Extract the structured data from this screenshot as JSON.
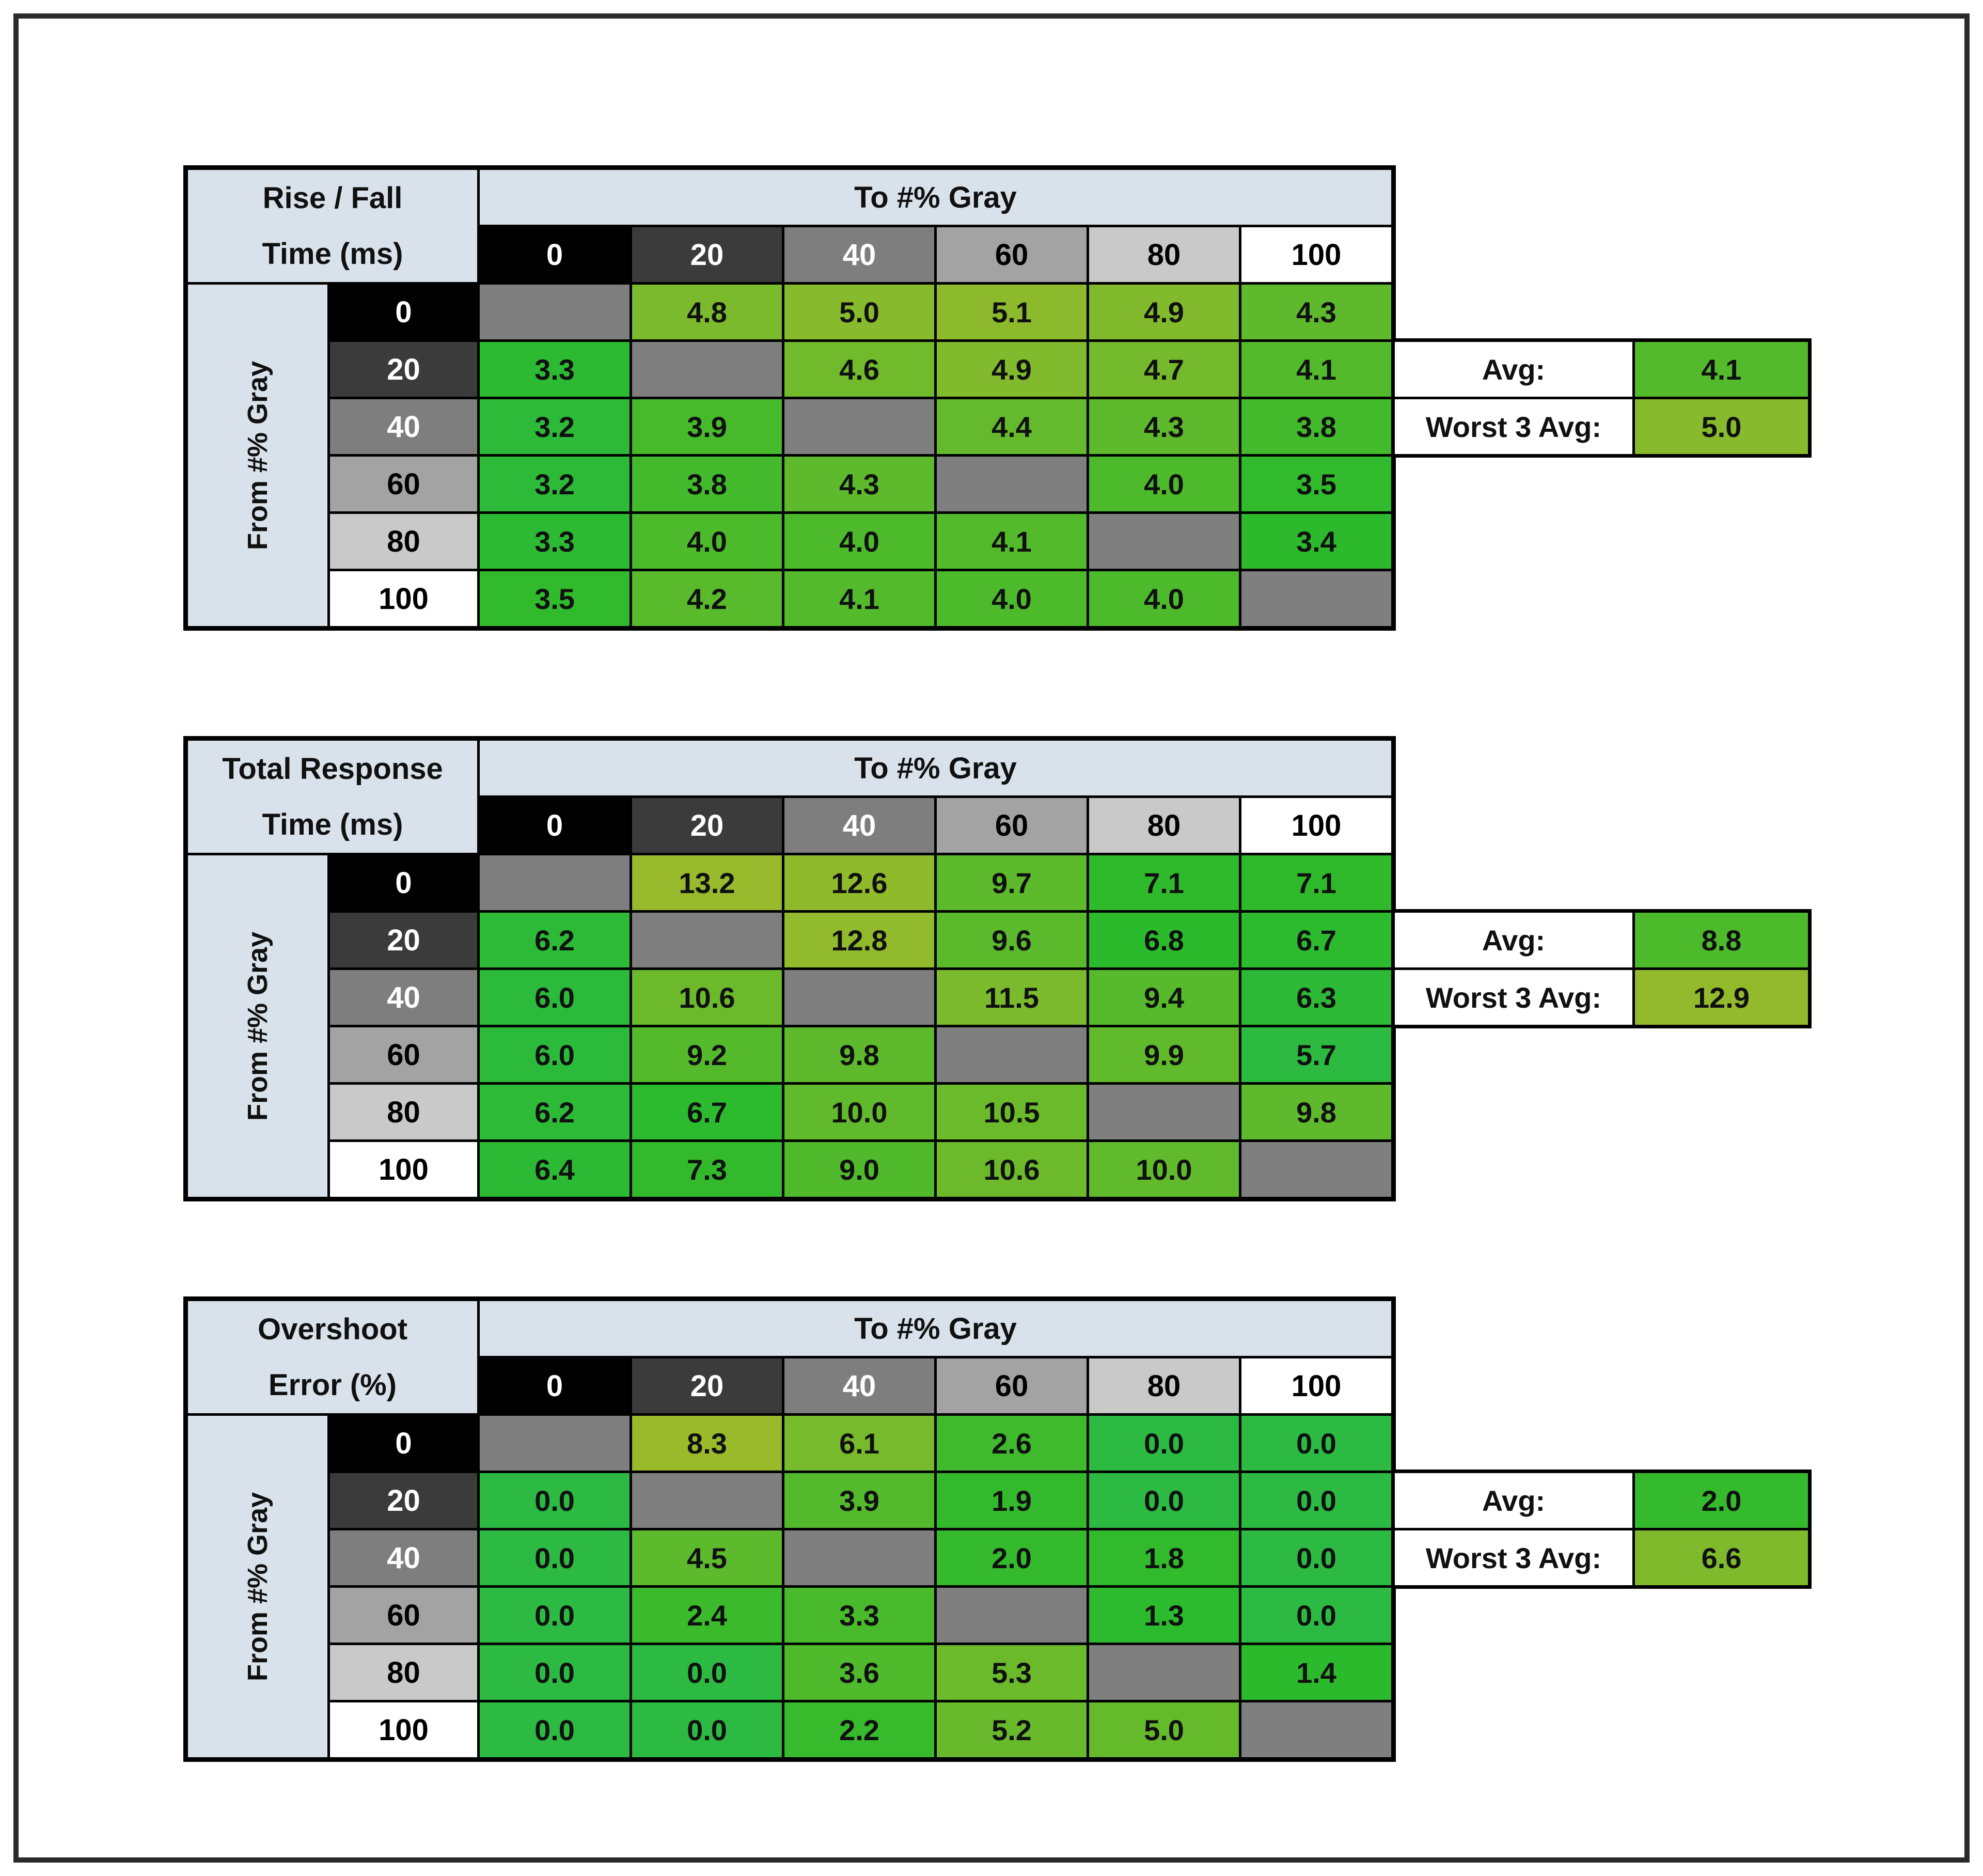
{
  "page": {
    "background": "#ffffff",
    "frame_border_color": "#2a2a2a"
  },
  "shared": {
    "to_header": "To #% Gray",
    "from_header": "From #% Gray",
    "levels": [
      "0",
      "20",
      "40",
      "60",
      "80",
      "100"
    ],
    "avg_label": "Avg:",
    "worst3_label": "Worst 3 Avg:",
    "header_bg": "#d9e2eb",
    "diagonal_bg": "#7f7f7f",
    "grid_color": "#000000",
    "level_styles": [
      {
        "bg": "#000000",
        "fg": "#ffffff"
      },
      {
        "bg": "#3b3b3b",
        "fg": "#ffffff"
      },
      {
        "bg": "#7e7e7e",
        "fg": "#ffffff"
      },
      {
        "bg": "#a3a3a3",
        "fg": "#000000"
      },
      {
        "bg": "#c9c9c9",
        "fg": "#000000"
      },
      {
        "bg": "#ffffff",
        "fg": "#000000"
      }
    ],
    "color_scale": {
      "good_hue": 130,
      "bad_hue": 72,
      "saturation": 62,
      "lightness": 45
    }
  },
  "chart_data": [
    {
      "type": "heatmap",
      "id": "rise-fall-time",
      "title": "Rise / Fall Time (ms)",
      "title_lines": [
        "Rise / Fall",
        "Time (ms)"
      ],
      "xlabel": "To #% Gray",
      "ylabel": "From #% Gray",
      "categories": [
        0,
        20,
        40,
        60,
        80,
        100
      ],
      "values": [
        [
          null,
          4.8,
          5.0,
          5.1,
          4.9,
          4.3
        ],
        [
          3.3,
          null,
          4.6,
          4.9,
          4.7,
          4.1
        ],
        [
          3.2,
          3.9,
          null,
          4.4,
          4.3,
          3.8
        ],
        [
          3.2,
          3.8,
          4.3,
          null,
          4.0,
          3.5
        ],
        [
          3.3,
          4.0,
          4.0,
          4.1,
          null,
          3.4
        ],
        [
          3.5,
          4.2,
          4.1,
          4.0,
          4.0,
          null
        ]
      ],
      "avg": 4.1,
      "worst3_avg": 5.0,
      "scale": {
        "min": 3.0,
        "max": 5.4
      }
    },
    {
      "type": "heatmap",
      "id": "total-response-time",
      "title": "Total Response Time (ms)",
      "title_lines": [
        "Total Response",
        "Time (ms)"
      ],
      "xlabel": "To #% Gray",
      "ylabel": "From #% Gray",
      "categories": [
        0,
        20,
        40,
        60,
        80,
        100
      ],
      "values": [
        [
          null,
          13.2,
          12.6,
          9.7,
          7.1,
          7.1
        ],
        [
          6.2,
          null,
          12.8,
          9.6,
          6.8,
          6.7
        ],
        [
          6.0,
          10.6,
          null,
          11.5,
          9.4,
          6.3
        ],
        [
          6.0,
          9.2,
          9.8,
          null,
          9.9,
          5.7
        ],
        [
          6.2,
          6.7,
          10.0,
          10.5,
          null,
          9.8
        ],
        [
          6.4,
          7.3,
          9.0,
          10.6,
          10.0,
          null
        ]
      ],
      "avg": 8.8,
      "worst3_avg": 12.9,
      "scale": {
        "min": 5.5,
        "max": 13.5
      }
    },
    {
      "type": "heatmap",
      "id": "overshoot-error",
      "title": "Overshoot Error (%)",
      "title_lines": [
        "Overshoot",
        "Error (%)"
      ],
      "xlabel": "To #% Gray",
      "ylabel": "From #% Gray",
      "categories": [
        0,
        20,
        40,
        60,
        80,
        100
      ],
      "values": [
        [
          null,
          8.3,
          6.1,
          2.6,
          0.0,
          0.0
        ],
        [
          0.0,
          null,
          3.9,
          1.9,
          0.0,
          0.0
        ],
        [
          0.0,
          4.5,
          null,
          2.0,
          1.8,
          0.0
        ],
        [
          0.0,
          2.4,
          3.3,
          null,
          1.3,
          0.0
        ],
        [
          0.0,
          0.0,
          3.6,
          5.3,
          null,
          1.4
        ],
        [
          0.0,
          0.0,
          2.2,
          5.2,
          5.0,
          null
        ]
      ],
      "avg": 2.0,
      "worst3_avg": 6.6,
      "scale": {
        "min": 0.0,
        "max": 8.5
      }
    }
  ],
  "layout_tops": [
    320,
    1425,
    2510
  ]
}
